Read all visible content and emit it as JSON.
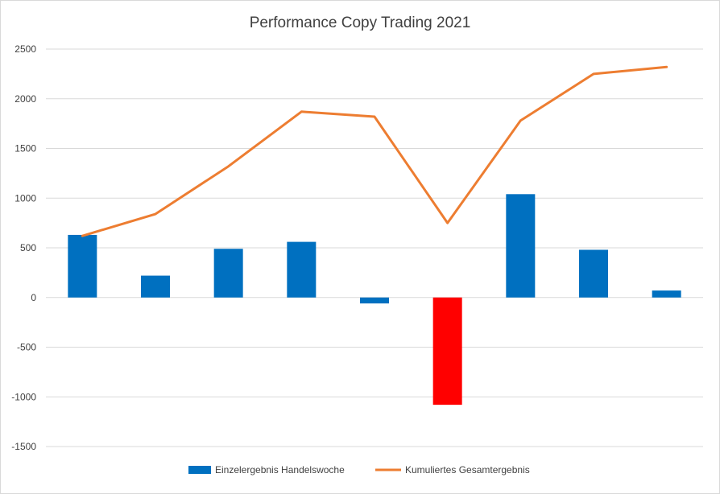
{
  "chart_data": {
    "type": "bar",
    "title": "Performance Copy Trading 2021",
    "ylim": [
      -1500,
      2500
    ],
    "yticks": [
      2500,
      2000,
      1500,
      1000,
      500,
      0,
      -500,
      -1000,
      -1500
    ],
    "grid": true,
    "legend_position": "bottom",
    "categories": [
      "",
      "",
      "",
      "",
      "",
      "",
      "",
      "",
      ""
    ],
    "series": [
      {
        "name": "Einzelergebnis Handelswoche",
        "type": "bar",
        "color": "#0070C0",
        "highlight_color": "#FF0000",
        "highlight_index": 5,
        "values": [
          630,
          220,
          490,
          560,
          -60,
          -1080,
          1040,
          480,
          70
        ]
      },
      {
        "name": "Kumuliertes Gesamtergebnis",
        "type": "line",
        "color": "#ED7D31",
        "values": [
          620,
          840,
          1320,
          1870,
          1820,
          750,
          1780,
          2250,
          2320
        ]
      }
    ]
  }
}
